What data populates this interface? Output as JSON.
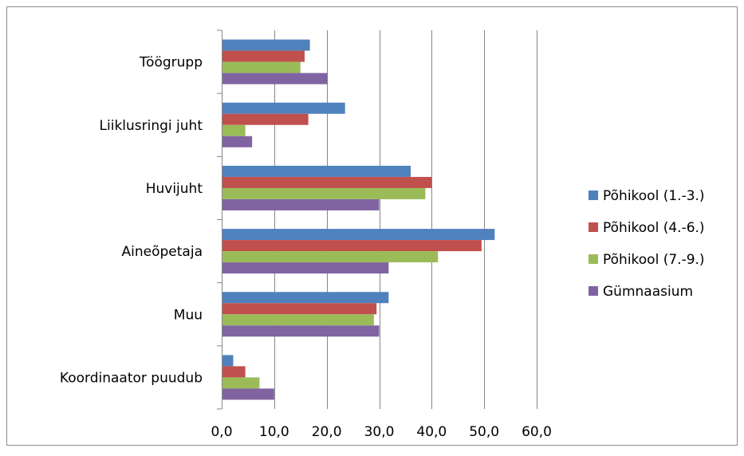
{
  "chart_data": {
    "type": "bar",
    "orientation": "horizontal",
    "categories": [
      "Töögrupp",
      "Liiklusringi juht",
      "Huvijuht",
      "Aineõpetaja",
      "Muu",
      "Koordinaator puudub"
    ],
    "series": [
      {
        "name": "Põhikool (1.-3.)",
        "color": "#4F81BD",
        "values": [
          16.8,
          23.5,
          36.0,
          52.0,
          31.8,
          2.2
        ]
      },
      {
        "name": "Põhikool (4.-6.)",
        "color": "#C0504D",
        "values": [
          15.8,
          16.5,
          40.0,
          49.5,
          29.5,
          4.5
        ]
      },
      {
        "name": "Põhikool (7.-9.)",
        "color": "#9BBB59",
        "values": [
          15.0,
          4.5,
          38.8,
          41.2,
          29.0,
          7.2
        ]
      },
      {
        "name": "Gümnaasium",
        "color": "#8064A2",
        "values": [
          20.2,
          5.8,
          30.0,
          31.8,
          30.0,
          10.0
        ]
      }
    ],
    "xlim": [
      0,
      60
    ],
    "x_ticks": [
      "0,0",
      "10,0",
      "20,0",
      "30,0",
      "40,0",
      "50,0",
      "60,0"
    ],
    "grid": "vertical",
    "legend_position": "right"
  }
}
